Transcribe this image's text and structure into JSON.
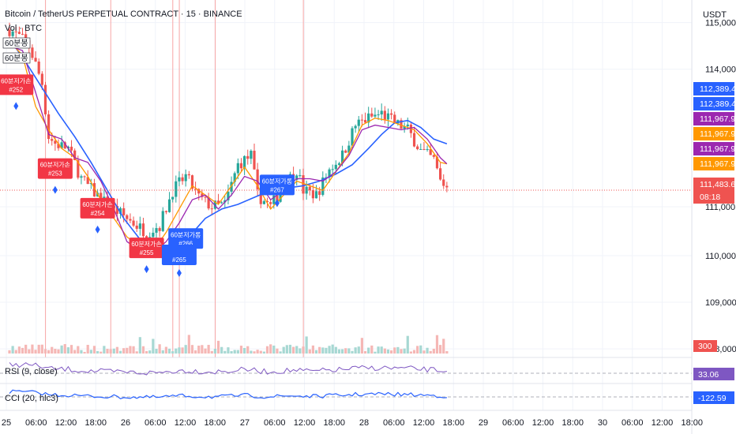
{
  "header": {
    "title": "Bitcoin / TetherUS PERPETUAL CONTRACT · 15 · BINANCE",
    "vol_label": "Vol · BTC",
    "currency": "USDT",
    "ind1": "60분봉",
    "ind2": "60분봉"
  },
  "colors": {
    "up": "#26a69a",
    "down": "#ef5350",
    "ma_blue": "#2962ff",
    "orange": "#ff9800",
    "purple": "#9c27b0",
    "dark_purple": "#7b1fa2",
    "rsi": "#7e57c2",
    "grid": "#f0f3fa",
    "text": "#131722",
    "vline": "#f7a6a6"
  },
  "chart_data": {
    "type": "candlestick",
    "title": "Bitcoin / TetherUS PERPETUAL CONTRACT · 15 · BINANCE",
    "interval": "15",
    "exchange": "BINANCE",
    "y_unit": "USDT",
    "ylim": [
      107900,
      115400
    ],
    "y_ticks": [
      "115,000.0",
      "114,000.0",
      "111,000.0",
      "110,000.0",
      "109,000.0",
      "108,000.0"
    ],
    "x_ticks": [
      "25",
      "06:00",
      "12:00",
      "18:00",
      "26",
      "06:00",
      "12:00",
      "18:00",
      "27",
      "06:00",
      "12:00",
      "18:00",
      "28",
      "06:00",
      "12:00",
      "18:00",
      "29",
      "06:00",
      "12:00",
      "18:00",
      "30",
      "06:00",
      "12:00",
      "18:00"
    ],
    "price_path": [
      [
        0,
        114850
      ],
      [
        3,
        114700
      ],
      [
        6,
        114500
      ],
      [
        10,
        113700
      ],
      [
        12,
        112550
      ],
      [
        14,
        112400
      ],
      [
        18,
        112300
      ],
      [
        22,
        111650
      ],
      [
        26,
        111350
      ],
      [
        30,
        111100
      ],
      [
        34,
        110900
      ],
      [
        38,
        110700
      ],
      [
        42,
        110500
      ],
      [
        46,
        110650
      ],
      [
        50,
        111400
      ],
      [
        54,
        111700
      ],
      [
        58,
        111250
      ],
      [
        62,
        111050
      ],
      [
        66,
        111100
      ],
      [
        70,
        111950
      ],
      [
        74,
        112150
      ],
      [
        76,
        111300
      ],
      [
        80,
        111050
      ],
      [
        84,
        111500
      ],
      [
        88,
        111850
      ],
      [
        90,
        111400
      ],
      [
        94,
        111300
      ],
      [
        98,
        111850
      ],
      [
        102,
        112150
      ],
      [
        106,
        112800
      ],
      [
        110,
        112950
      ],
      [
        114,
        113050
      ],
      [
        118,
        112850
      ],
      [
        122,
        112700
      ],
      [
        126,
        112250
      ],
      [
        130,
        112050
      ],
      [
        132,
        111600
      ],
      [
        134,
        111480
      ]
    ],
    "series": [
      {
        "name": "",
        "color": "#2962ff",
        "points": [
          [
            0,
            114650
          ],
          [
            5,
            114150
          ],
          [
            10,
            113600
          ],
          [
            15,
            113050
          ],
          [
            20,
            112550
          ],
          [
            25,
            112000
          ],
          [
            30,
            111400
          ],
          [
            35,
            110800
          ],
          [
            40,
            110350
          ],
          [
            45,
            110100
          ],
          [
            50,
            110050
          ],
          [
            55,
            110400
          ],
          [
            60,
            110800
          ],
          [
            65,
            111000
          ],
          [
            70,
            111100
          ],
          [
            75,
            111250
          ],
          [
            80,
            111400
          ],
          [
            85,
            111450
          ],
          [
            90,
            111500
          ],
          [
            95,
            111600
          ],
          [
            100,
            111750
          ],
          [
            105,
            111950
          ],
          [
            110,
            112300
          ],
          [
            114,
            112600
          ],
          [
            118,
            112850
          ],
          [
            122,
            112900
          ],
          [
            126,
            112750
          ],
          [
            130,
            112500
          ],
          [
            134,
            112400
          ]
        ]
      },
      {
        "name": "",
        "color": "#ff9800",
        "points": [
          [
            0,
            114600
          ],
          [
            4,
            114300
          ],
          [
            8,
            113200
          ],
          [
            12,
            112700
          ],
          [
            16,
            112300
          ],
          [
            20,
            112100
          ],
          [
            24,
            111700
          ],
          [
            28,
            111200
          ],
          [
            32,
            110800
          ],
          [
            36,
            110400
          ],
          [
            40,
            110200
          ],
          [
            44,
            110100
          ],
          [
            48,
            110500
          ],
          [
            52,
            111000
          ],
          [
            56,
            111500
          ],
          [
            60,
            111300
          ],
          [
            64,
            111100
          ],
          [
            68,
            111500
          ],
          [
            72,
            111900
          ],
          [
            76,
            111500
          ],
          [
            80,
            111000
          ],
          [
            84,
            111300
          ],
          [
            88,
            111600
          ],
          [
            92,
            111500
          ],
          [
            96,
            111400
          ],
          [
            100,
            111800
          ],
          [
            104,
            112200
          ],
          [
            108,
            112800
          ],
          [
            112,
            112950
          ],
          [
            116,
            112900
          ],
          [
            120,
            112800
          ],
          [
            124,
            112700
          ],
          [
            128,
            112400
          ],
          [
            132,
            112000
          ],
          [
            134,
            111970
          ]
        ]
      },
      {
        "name": "",
        "color": "#9c27b0",
        "points": [
          [
            0,
            114500
          ],
          [
            4,
            114400
          ],
          [
            8,
            113500
          ],
          [
            12,
            112600
          ],
          [
            16,
            112500
          ],
          [
            20,
            112100
          ],
          [
            24,
            112000
          ],
          [
            28,
            111600
          ],
          [
            32,
            111000
          ],
          [
            36,
            110300
          ],
          [
            40,
            110100
          ],
          [
            44,
            110050
          ],
          [
            48,
            110300
          ],
          [
            52,
            110700
          ],
          [
            56,
            111200
          ],
          [
            60,
            111300
          ],
          [
            64,
            111000
          ],
          [
            68,
            111300
          ],
          [
            72,
            111700
          ],
          [
            76,
            111600
          ],
          [
            80,
            111200
          ],
          [
            84,
            111400
          ],
          [
            88,
            111650
          ],
          [
            92,
            111650
          ],
          [
            96,
            111600
          ],
          [
            100,
            111800
          ],
          [
            104,
            112150
          ],
          [
            108,
            112700
          ],
          [
            112,
            112800
          ],
          [
            116,
            112750
          ],
          [
            120,
            112700
          ],
          [
            124,
            112750
          ],
          [
            128,
            112500
          ],
          [
            132,
            112100
          ],
          [
            134,
            111970
          ]
        ]
      }
    ],
    "vertical_markers_x": [
      12,
      32,
      51,
      53,
      64,
      91
    ],
    "annotations_sell": [
      {
        "x": 2,
        "y": 113650,
        "label": "60분저가손",
        "id": "#252"
      },
      {
        "x": 14,
        "y": 111850,
        "label": "60분저가손",
        "id": "#253"
      },
      {
        "x": 27,
        "y": 111000,
        "label": "60분저가손",
        "id": "#254"
      },
      {
        "x": 42,
        "y": 110150,
        "label": "60분저가손",
        "id": "#255"
      }
    ],
    "annotations_buy": [
      {
        "x": 82,
        "y": 111500,
        "label": "60분저가롱",
        "id": "#267"
      },
      {
        "x": 54,
        "y": 110350,
        "label": "60분저가롱",
        "id": "#266"
      },
      {
        "x": 52,
        "y": 110000,
        "label": "",
        "id": "#265"
      }
    ],
    "price_tags": [
      {
        "value": "112,389.4",
        "color": "#2962ff"
      },
      {
        "value": "112,389.4",
        "color": "#2962ff"
      },
      {
        "value": "111,967.9",
        "color": "#9c27b0"
      },
      {
        "value": "111,967.9",
        "color": "#ff9800"
      },
      {
        "value": "111,967.9",
        "color": "#9c27b0"
      },
      {
        "value": "111,967.9",
        "color": "#ff9800"
      },
      {
        "value": "111,483.6",
        "color": "#ef5350"
      },
      {
        "value": "08:18",
        "color": "#ef5350"
      }
    ],
    "volume_tag": "300",
    "rsi": {
      "label": "RSI (9, close)",
      "value": "33.06",
      "color": "#7e57c2"
    },
    "cci": {
      "label": "CCI (20, hlc3)",
      "value": "-122.59",
      "color": "#2962ff"
    }
  }
}
